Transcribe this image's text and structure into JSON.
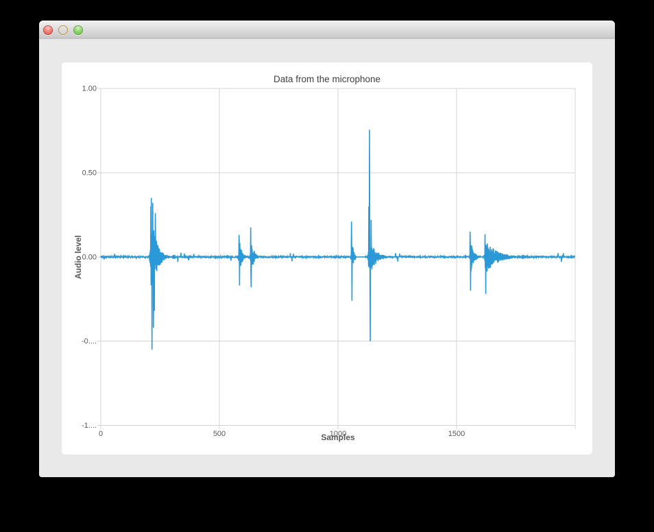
{
  "window": {
    "buttons": {
      "close": "close-window",
      "minimize": "minimize-window",
      "zoom": "zoom-window"
    },
    "title": ""
  },
  "chart_data": {
    "type": "line",
    "title": "Data from the microphone",
    "xlabel": "Samples",
    "ylabel": "Audio level",
    "xlim": [
      0,
      2000
    ],
    "ylim": [
      -1,
      1
    ],
    "grid": true,
    "legend": "none",
    "series_color": "#2b99d8",
    "grid_color": "#d4d4d4",
    "x_ticks": [
      {
        "value": 0,
        "label": "0"
      },
      {
        "value": 500,
        "label": "500"
      },
      {
        "value": 1000,
        "label": "1000"
      },
      {
        "value": 1500,
        "label": "1500"
      },
      {
        "value": 2000,
        "label": ""
      }
    ],
    "y_ticks": [
      {
        "value": 1.0,
        "label": "1.00"
      },
      {
        "value": 0.5,
        "label": "0.50"
      },
      {
        "value": 0.0,
        "label": "0.00"
      },
      {
        "value": -0.5,
        "label": "-0...."
      },
      {
        "value": -1.0,
        "label": "-1...."
      }
    ],
    "n_samples": 2000,
    "baseline_noise": 0.004,
    "bursts": [
      {
        "start": 203,
        "end": 315,
        "center": 213,
        "peak": 0.26,
        "tau": 22,
        "attack": 3
      },
      {
        "start": 578,
        "end": 622,
        "center": 584,
        "peak": 0.1,
        "tau": 11,
        "attack": 2
      },
      {
        "start": 626,
        "end": 672,
        "center": 633,
        "peak": 0.11,
        "tau": 12,
        "attack": 2
      },
      {
        "start": 1046,
        "end": 1075,
        "center": 1058,
        "peak": 0.11,
        "tau": 8,
        "attack": 2
      },
      {
        "start": 1078,
        "end": 1205,
        "center": 1132,
        "peak": 0.12,
        "tau": 26,
        "attack": 4
      },
      {
        "start": 1552,
        "end": 1600,
        "center": 1559,
        "peak": 0.1,
        "tau": 14,
        "attack": 2
      },
      {
        "start": 1604,
        "end": 1795,
        "center": 1622,
        "peak": 0.1,
        "tau": 48,
        "attack": 3
      }
    ],
    "spikes": [
      {
        "t": 211,
        "v": 0.3
      },
      {
        "t": 213,
        "v": 0.35
      },
      {
        "t": 216,
        "v": -0.55
      },
      {
        "t": 219,
        "v": 0.32
      },
      {
        "t": 222,
        "v": -0.42
      },
      {
        "t": 226,
        "v": -0.32
      },
      {
        "t": 230,
        "v": 0.26
      },
      {
        "t": 583,
        "v": 0.13
      },
      {
        "t": 585,
        "v": -0.17
      },
      {
        "t": 632,
        "v": 0.175
      },
      {
        "t": 634,
        "v": -0.18
      },
      {
        "t": 1057,
        "v": 0.21
      },
      {
        "t": 1059,
        "v": -0.26
      },
      {
        "t": 1130,
        "v": 0.3
      },
      {
        "t": 1133,
        "v": 0.755
      },
      {
        "t": 1136,
        "v": -0.5
      },
      {
        "t": 1140,
        "v": 0.22
      },
      {
        "t": 1557,
        "v": 0.15
      },
      {
        "t": 1559,
        "v": -0.2
      },
      {
        "t": 1620,
        "v": 0.135
      },
      {
        "t": 1623,
        "v": -0.22
      }
    ],
    "blips": [
      {
        "t": 14,
        "v": -0.015
      },
      {
        "t": 58,
        "v": 0.018
      },
      {
        "t": 150,
        "v": -0.012
      },
      {
        "t": 325,
        "v": -0.03
      },
      {
        "t": 338,
        "v": 0.025
      },
      {
        "t": 352,
        "v": 0.02
      },
      {
        "t": 370,
        "v": -0.02
      },
      {
        "t": 392,
        "v": 0.018
      },
      {
        "t": 549,
        "v": -0.022
      },
      {
        "t": 799,
        "v": 0.022
      },
      {
        "t": 806,
        "v": -0.026
      },
      {
        "t": 812,
        "v": 0.018
      },
      {
        "t": 1243,
        "v": 0.022
      },
      {
        "t": 1252,
        "v": -0.028
      },
      {
        "t": 1260,
        "v": 0.02
      },
      {
        "t": 1928,
        "v": 0.022
      },
      {
        "t": 1942,
        "v": -0.03
      },
      {
        "t": 1950,
        "v": 0.022
      }
    ]
  }
}
